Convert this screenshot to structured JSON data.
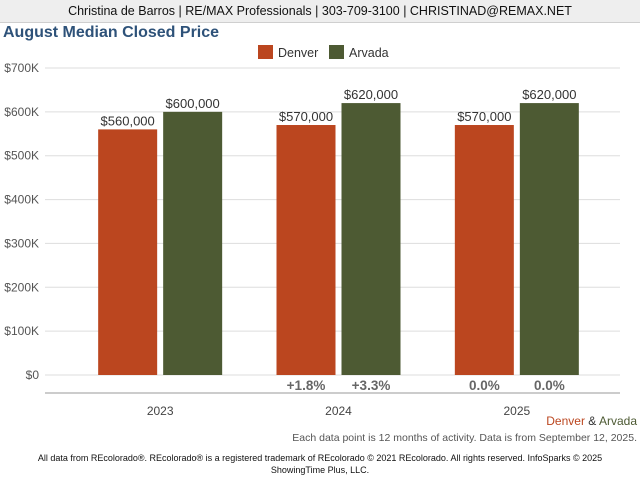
{
  "header": {
    "contact": "Christina de Barros | RE/MAX Professionals | 303-709-3100 | CHRISTINAD@REMAX.NET"
  },
  "colors": {
    "denver": "#bb461f",
    "arvada": "#4d5a33"
  },
  "chart_data": {
    "type": "bar",
    "title": "August Median Closed Price",
    "categories": [
      "2023",
      "2024",
      "2025"
    ],
    "series": [
      {
        "name": "Denver",
        "values": [
          560000,
          570000,
          570000
        ],
        "labels": [
          "$560,000",
          "$570,000",
          "$570,000"
        ],
        "change": [
          "",
          "+1.8%",
          "0.0%"
        ]
      },
      {
        "name": "Arvada",
        "values": [
          600000,
          620000,
          620000
        ],
        "labels": [
          "$600,000",
          "$620,000",
          "$620,000"
        ],
        "change": [
          "",
          "+3.3%",
          "0.0%"
        ]
      }
    ],
    "ylim": [
      0,
      700000
    ],
    "yticks": [
      0,
      100000,
      200000,
      300000,
      400000,
      500000,
      600000,
      700000
    ],
    "ytick_labels": [
      "$0",
      "$100K",
      "$200K",
      "$300K",
      "$400K",
      "$500K",
      "$600K",
      "$700K"
    ],
    "grid": true,
    "legend": "top-center"
  },
  "source_line": {
    "denver": "Denver",
    "amp": " & ",
    "arvada": "Arvada"
  },
  "note": "Each data point is 12 months of activity. Data is from September 12, 2025.",
  "footer": "All data from REcolorado®. REcolorado® is a registered trademark of REcolorado © 2021 REcolorado. All rights reserved. InfoSparks © 2025 ShowingTime Plus, LLC."
}
